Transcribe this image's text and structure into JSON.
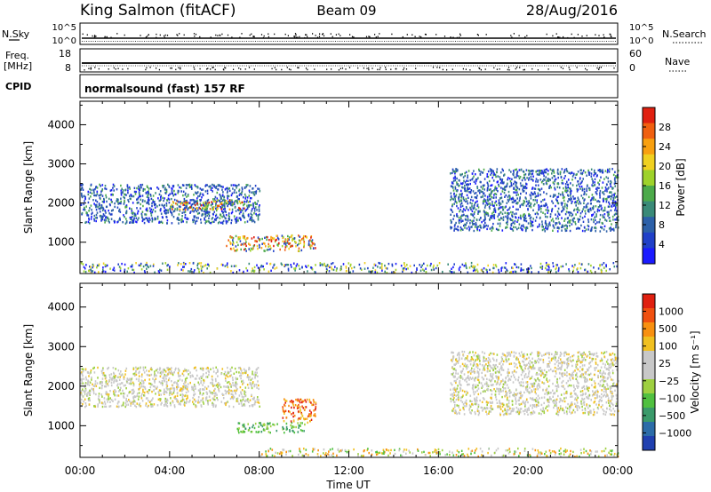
{
  "header": {
    "station": "King Salmon (fitACF)",
    "beam": "Beam 09",
    "date": "28/Aug/2016"
  },
  "strips": {
    "nsky_label": "N.Sky",
    "nsky_ticks": [
      "10^5",
      "10^0"
    ],
    "nsearch_label": "N.Search",
    "nsearch_ticks": [
      "10^5",
      "10^0"
    ],
    "freq_label_1": "Freq.",
    "freq_label_2": "[MHz]",
    "freq_ticks": [
      "18",
      "8"
    ],
    "nave_label": "Nave",
    "nave_ticks": [
      "60",
      "0"
    ],
    "cpid_label": "CPID",
    "cpid_text": "normalsound (fast) 157 RF"
  },
  "chart_data": [
    {
      "type": "heatmap",
      "panel": "power",
      "ylabel": "Slant Range [km]",
      "xlabel": "",
      "x_range_hours": [
        0,
        24
      ],
      "ylim": [
        200,
        4600
      ],
      "yticks": [
        1000,
        2000,
        3000,
        4000
      ],
      "colorbar": {
        "label": "Power [dB]",
        "ticks": [
          "4",
          "8",
          "12",
          "16",
          "20",
          "24",
          "28"
        ],
        "colors": [
          "#1a1aff",
          "#2040c8",
          "#2c60a8",
          "#3a8a78",
          "#4caa4a",
          "#9ed22a",
          "#f0d020",
          "#f8a010",
          "#f06010",
          "#e02010"
        ]
      },
      "echo_regions": [
        {
          "start": "00:00",
          "end": "08:00",
          "range_km": [
            1500,
            2500
          ],
          "level": "low-mid"
        },
        {
          "start": "04:00",
          "end": "07:30",
          "range_km": [
            1850,
            2100
          ],
          "level": "high"
        },
        {
          "start": "06:30",
          "end": "10:30",
          "range_km": [
            800,
            1200
          ],
          "level": "high"
        },
        {
          "start": "16:30",
          "end": "24:00",
          "range_km": [
            1300,
            2900
          ],
          "level": "low-mid"
        },
        {
          "start": "00:00",
          "end": "24:00",
          "range_km": [
            200,
            500
          ],
          "level": "ground scatter"
        }
      ]
    },
    {
      "type": "heatmap",
      "panel": "velocity",
      "ylabel": "Slant Range [km]",
      "xlabel": "Time UT",
      "x_range_hours": [
        0,
        24
      ],
      "xticks": [
        "00:00",
        "04:00",
        "08:00",
        "12:00",
        "16:00",
        "20:00",
        "00:00"
      ],
      "ylim": [
        200,
        4600
      ],
      "yticks": [
        1000,
        2000,
        3000,
        4000
      ],
      "colorbar": {
        "label": "Velocity [m s⁻¹]",
        "ticks": [
          "1000",
          "500",
          "100",
          "25",
          "−25",
          "−100",
          "−500",
          "−1000"
        ],
        "colors": [
          "#2040b0",
          "#2c6ca8",
          "#3a9a6a",
          "#50c040",
          "#9ed040",
          "#c8c8c8",
          "#c8c8c8",
          "#f0c020",
          "#f89010",
          "#f05010",
          "#e02010"
        ]
      },
      "echo_regions": [
        {
          "start": "00:00",
          "end": "08:00",
          "range_km": [
            1500,
            2500
          ],
          "velocity": "near zero"
        },
        {
          "start": "07:00",
          "end": "10:00",
          "range_km": [
            850,
            1100
          ],
          "velocity": "positive"
        },
        {
          "start": "09:00",
          "end": "10:30",
          "range_km": [
            1100,
            1700
          ],
          "velocity": "negative"
        },
        {
          "start": "16:30",
          "end": "24:00",
          "range_km": [
            1300,
            2900
          ],
          "velocity": "near zero"
        },
        {
          "start": "08:00",
          "end": "24:00",
          "range_km": [
            200,
            450
          ],
          "velocity": "mixed"
        }
      ]
    }
  ]
}
